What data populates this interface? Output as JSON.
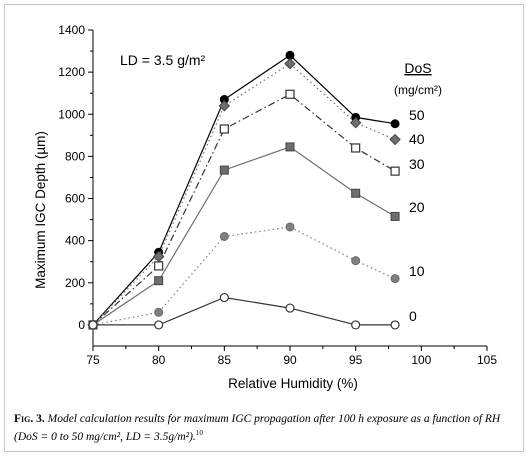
{
  "chart_data": {
    "type": "line",
    "xlabel": "Relative Humidity (%)",
    "ylabel": "Maximum IGC Depth (µm)",
    "xlim": [
      75,
      105
    ],
    "ylim": [
      -100,
      1400
    ],
    "xticks": [
      "75",
      "80",
      "85",
      "90",
      "95",
      "100",
      "105"
    ],
    "yticks": [
      "0",
      "200",
      "400",
      "600",
      "800",
      "1000",
      "1200",
      "1400"
    ],
    "annotation": "LD = 3.5 g/m²",
    "legend_title": "DoS",
    "legend_unit": "(mg/cm²)",
    "x": [
      75,
      80,
      85,
      90,
      95,
      98
    ],
    "series": [
      {
        "name": "50",
        "values": [
          0,
          345,
          1070,
          1280,
          985,
          955
        ],
        "color": "#000000",
        "marker": "circle-filled",
        "dash": "solid"
      },
      {
        "name": "40",
        "values": [
          0,
          325,
          1040,
          1240,
          960,
          880
        ],
        "color": "#6e6e6e",
        "marker": "diamond",
        "dash": "dot"
      },
      {
        "name": "30",
        "values": [
          0,
          280,
          930,
          1095,
          840,
          730
        ],
        "color": "#333333",
        "marker": "square-open",
        "dash": "dashdot"
      },
      {
        "name": "20",
        "values": [
          0,
          210,
          735,
          845,
          625,
          515
        ],
        "color": "#6e6e6e",
        "marker": "square-filled",
        "dash": "solid"
      },
      {
        "name": "10",
        "values": [
          0,
          60,
          420,
          465,
          305,
          220
        ],
        "color": "#808080",
        "marker": "circle-gray",
        "dash": "dot"
      },
      {
        "name": "0",
        "values": [
          0,
          0,
          130,
          80,
          0,
          0
        ],
        "color": "#333333",
        "marker": "circle-open",
        "dash": "solid"
      }
    ]
  },
  "caption": {
    "label": "Fig. 3.",
    "text": " Model calculation results for maximum IGC propagation after 100 h exposure as a function of RH (DoS = 0 to 50 mg/cm², LD = 3.5g/m²).",
    "ref": "10"
  }
}
